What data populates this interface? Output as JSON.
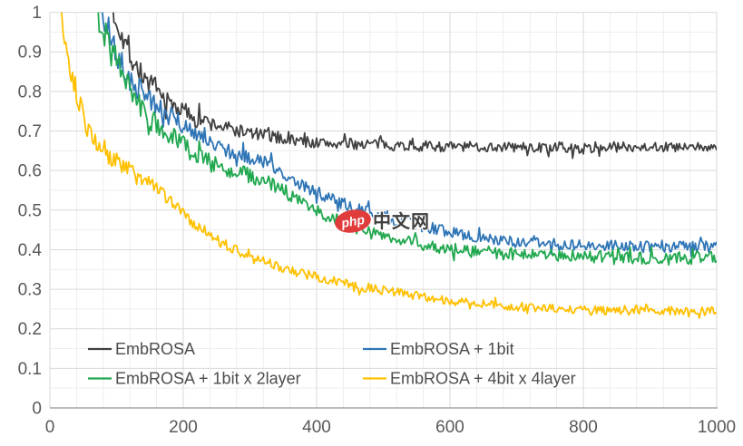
{
  "chart_data": {
    "type": "line",
    "title": "",
    "xlabel": "",
    "ylabel": "",
    "xlim": [
      0,
      1000
    ],
    "ylim": [
      0,
      1
    ],
    "x_tick_values": [
      0,
      200,
      400,
      600,
      800,
      1000
    ],
    "x_tick_labels": [
      "0",
      "200",
      "400",
      "600",
      "800",
      "1000"
    ],
    "y_tick_values": [
      0,
      0.1,
      0.2,
      0.3,
      0.4,
      0.5,
      0.6,
      0.7,
      0.8,
      0.9,
      1
    ],
    "y_tick_labels": [
      "0",
      "0.1",
      "0.2",
      "0.3",
      "0.4",
      "0.5",
      "0.6",
      "0.7",
      "0.8",
      "0.9",
      "1"
    ],
    "x_minor_step": 40,
    "y_minor_step": 0.05,
    "grid": "major and minor gridlines",
    "legend_position": "inside bottom-left, two columns",
    "noise_seed": 7,
    "series": [
      {
        "name": "EmbROSA",
        "color": "#404040",
        "noise": 0.013,
        "trend": [
          [
            82,
            1.12
          ],
          [
            95,
            1.0
          ],
          [
            108,
            0.945
          ],
          [
            122,
            0.885
          ],
          [
            135,
            0.85
          ],
          [
            147,
            0.825
          ],
          [
            160,
            0.8
          ],
          [
            175,
            0.775
          ],
          [
            200,
            0.752
          ],
          [
            220,
            0.735
          ],
          [
            238,
            0.72
          ],
          [
            260,
            0.71
          ],
          [
            285,
            0.7
          ],
          [
            310,
            0.692
          ],
          [
            330,
            0.687
          ],
          [
            360,
            0.678
          ],
          [
            400,
            0.67
          ],
          [
            440,
            0.667
          ],
          [
            480,
            0.668
          ],
          [
            520,
            0.664
          ],
          [
            560,
            0.662
          ],
          [
            600,
            0.66
          ],
          [
            650,
            0.66
          ],
          [
            700,
            0.659
          ],
          [
            750,
            0.657
          ],
          [
            800,
            0.655
          ],
          [
            850,
            0.66
          ],
          [
            900,
            0.661
          ],
          [
            950,
            0.657
          ],
          [
            1000,
            0.66
          ]
        ]
      },
      {
        "name": "EmbROSA + 1bit",
        "color": "#2E75B6",
        "noise": 0.014,
        "trend": [
          [
            68,
            1.12
          ],
          [
            79,
            1.0
          ],
          [
            90,
            0.945
          ],
          [
            100,
            0.9
          ],
          [
            112,
            0.855
          ],
          [
            122,
            0.825
          ],
          [
            135,
            0.805
          ],
          [
            147,
            0.785
          ],
          [
            162,
            0.762
          ],
          [
            175,
            0.745
          ],
          [
            200,
            0.713
          ],
          [
            220,
            0.69
          ],
          [
            238,
            0.672
          ],
          [
            258,
            0.655
          ],
          [
            280,
            0.642
          ],
          [
            300,
            0.632
          ],
          [
            318,
            0.625
          ],
          [
            335,
            0.612
          ],
          [
            355,
            0.59
          ],
          [
            375,
            0.568
          ],
          [
            395,
            0.55
          ],
          [
            415,
            0.533
          ],
          [
            437,
            0.518
          ],
          [
            460,
            0.505
          ],
          [
            483,
            0.492
          ],
          [
            506,
            0.48
          ],
          [
            530,
            0.47
          ],
          [
            555,
            0.46
          ],
          [
            580,
            0.452
          ],
          [
            596,
            0.447
          ],
          [
            620,
            0.438
          ],
          [
            645,
            0.43
          ],
          [
            665,
            0.426
          ],
          [
            687,
            0.421
          ],
          [
            710,
            0.419
          ],
          [
            740,
            0.416
          ],
          [
            770,
            0.413
          ],
          [
            800,
            0.411
          ],
          [
            830,
            0.41
          ],
          [
            860,
            0.409
          ],
          [
            890,
            0.408
          ],
          [
            920,
            0.407
          ],
          [
            960,
            0.407
          ],
          [
            1000,
            0.408
          ]
        ]
      },
      {
        "name": "EmbROSA + 1bit x 2layer",
        "color": "#21A84F",
        "noise": 0.016,
        "trend": [
          [
            60,
            1.12
          ],
          [
            72,
            1.0
          ],
          [
            82,
            0.95
          ],
          [
            92,
            0.905
          ],
          [
            102,
            0.865
          ],
          [
            113,
            0.818
          ],
          [
            123,
            0.79
          ],
          [
            135,
            0.762
          ],
          [
            147,
            0.736
          ],
          [
            160,
            0.715
          ],
          [
            172,
            0.698
          ],
          [
            186,
            0.68
          ],
          [
            200,
            0.663
          ],
          [
            218,
            0.64
          ],
          [
            238,
            0.621
          ],
          [
            258,
            0.607
          ],
          [
            278,
            0.597
          ],
          [
            298,
            0.588
          ],
          [
            315,
            0.58
          ],
          [
            330,
            0.571
          ],
          [
            350,
            0.549
          ],
          [
            370,
            0.527
          ],
          [
            392,
            0.506
          ],
          [
            415,
            0.488
          ],
          [
            438,
            0.47
          ],
          [
            460,
            0.456
          ],
          [
            483,
            0.443
          ],
          [
            506,
            0.432
          ],
          [
            530,
            0.422
          ],
          [
            555,
            0.412
          ],
          [
            580,
            0.406
          ],
          [
            596,
            0.402
          ],
          [
            620,
            0.398
          ],
          [
            645,
            0.394
          ],
          [
            665,
            0.392
          ],
          [
            687,
            0.389
          ],
          [
            710,
            0.388
          ],
          [
            740,
            0.386
          ],
          [
            770,
            0.385
          ],
          [
            800,
            0.383
          ],
          [
            830,
            0.381
          ],
          [
            860,
            0.38
          ],
          [
            890,
            0.379
          ],
          [
            920,
            0.378
          ],
          [
            960,
            0.379
          ],
          [
            1000,
            0.38
          ]
        ]
      },
      {
        "name": "EmbROSA + 4bit x 4layer",
        "color": "#FFC000",
        "noise": 0.011,
        "trend": [
          [
            10,
            1.15
          ],
          [
            18,
            1.0
          ],
          [
            23,
            0.93
          ],
          [
            28,
            0.875
          ],
          [
            34,
            0.832
          ],
          [
            40,
            0.795
          ],
          [
            46,
            0.762
          ],
          [
            52,
            0.728
          ],
          [
            58,
            0.7
          ],
          [
            65,
            0.678
          ],
          [
            72,
            0.663
          ],
          [
            80,
            0.65
          ],
          [
            90,
            0.636
          ],
          [
            102,
            0.621
          ],
          [
            113,
            0.61
          ],
          [
            125,
            0.598
          ],
          [
            136,
            0.585
          ],
          [
            147,
            0.573
          ],
          [
            158,
            0.558
          ],
          [
            170,
            0.542
          ],
          [
            184,
            0.517
          ],
          [
            200,
            0.49
          ],
          [
            212,
            0.468
          ],
          [
            224,
            0.452
          ],
          [
            237,
            0.437
          ],
          [
            250,
            0.425
          ],
          [
            264,
            0.411
          ],
          [
            279,
            0.398
          ],
          [
            292,
            0.388
          ],
          [
            305,
            0.378
          ],
          [
            319,
            0.37
          ],
          [
            333,
            0.362
          ],
          [
            346,
            0.355
          ],
          [
            360,
            0.348
          ],
          [
            374,
            0.342
          ],
          [
            388,
            0.336
          ],
          [
            401,
            0.331
          ],
          [
            415,
            0.327
          ],
          [
            428,
            0.321
          ],
          [
            442,
            0.315
          ],
          [
            456,
            0.31
          ],
          [
            470,
            0.306
          ],
          [
            488,
            0.301
          ],
          [
            506,
            0.297
          ],
          [
            528,
            0.29
          ],
          [
            550,
            0.284
          ],
          [
            573,
            0.278
          ],
          [
            596,
            0.272
          ],
          [
            618,
            0.267
          ],
          [
            640,
            0.263
          ],
          [
            663,
            0.26
          ],
          [
            687,
            0.257
          ],
          [
            710,
            0.255
          ],
          [
            740,
            0.252
          ],
          [
            770,
            0.25
          ],
          [
            800,
            0.249
          ],
          [
            830,
            0.247
          ],
          [
            860,
            0.246
          ],
          [
            890,
            0.246
          ],
          [
            920,
            0.246
          ],
          [
            960,
            0.245
          ],
          [
            1000,
            0.244
          ]
        ]
      }
    ],
    "legend_rows": [
      [
        0,
        1
      ],
      [
        2,
        3
      ]
    ]
  },
  "watermark": {
    "badge_text": "php",
    "badge_color": "#E03C3C",
    "label_text": "中文网",
    "label_color": "#3F3F3F"
  },
  "colors": {
    "background": "#FFFFFF",
    "axis_line": "#A6A6A6",
    "grid_major": "#D9D9D9",
    "grid_minor": "#EDEDED",
    "tick_text": "#595959",
    "legend_text": "#4D4D4D"
  }
}
